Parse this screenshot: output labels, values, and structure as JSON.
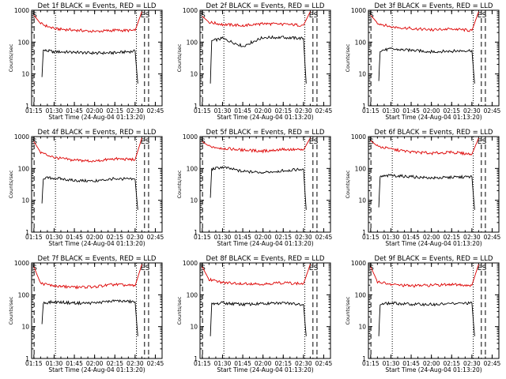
{
  "chart_data": [
    {
      "type": "line",
      "title": "Det 1f BLACK = Events, RED = LLD",
      "xlabel": "Start Time (24-Aug-04 01:13:20)",
      "ylabel": "Counts/sec",
      "xticks": [
        "01:15",
        "01:30",
        "01:45",
        "02:00",
        "02:15",
        "02:30",
        "02:45"
      ],
      "yticks": [
        "1",
        "10",
        "100",
        "1000"
      ],
      "yscale": "log",
      "ylim": [
        1,
        1000
      ],
      "xlim": [
        "01:13:20",
        "02:50"
      ],
      "markers": [
        "S",
        "E",
        "S"
      ],
      "series": [
        {
          "name": "Events",
          "color": "#000000",
          "x": [
            "01:21",
            "01:22",
            "01:30",
            "01:45",
            "02:00",
            "02:15",
            "02:30",
            "02:32"
          ],
          "y": [
            8,
            55,
            50,
            48,
            45,
            46,
            52,
            5
          ]
        },
        {
          "name": "LLD",
          "color": "#dd0000",
          "x": [
            "01:15",
            "01:20",
            "01:30",
            "01:45",
            "02:00",
            "02:15",
            "02:30",
            "02:35"
          ],
          "y": [
            700,
            380,
            260,
            240,
            215,
            235,
            230,
            900
          ]
        }
      ]
    },
    {
      "type": "line",
      "title": "Det 2f BLACK = Events, RED = LLD",
      "xlabel": "Start Time (24-Aug-04 01:13:20)",
      "ylabel": "Counts/sec",
      "xticks": [
        "01:15",
        "01:30",
        "01:45",
        "02:00",
        "02:15",
        "02:30",
        "02:45"
      ],
      "yticks": [
        "1",
        "10",
        "100",
        "1000"
      ],
      "yscale": "log",
      "ylim": [
        1,
        1000
      ],
      "xlim": [
        "01:13:20",
        "02:50"
      ],
      "markers": [
        "S",
        "E",
        "S"
      ],
      "series": [
        {
          "name": "Events",
          "color": "#000000",
          "x": [
            "01:21",
            "01:22",
            "01:30",
            "01:45",
            "02:00",
            "02:15",
            "02:30",
            "02:32"
          ],
          "y": [
            5,
            110,
            130,
            75,
            140,
            140,
            130,
            5
          ]
        },
        {
          "name": "LLD",
          "color": "#dd0000",
          "x": [
            "01:15",
            "01:20",
            "01:30",
            "01:45",
            "02:00",
            "02:15",
            "02:30",
            "02:35"
          ],
          "y": [
            650,
            420,
            360,
            330,
            380,
            360,
            340,
            900
          ]
        }
      ]
    },
    {
      "type": "line",
      "title": "Det 3f BLACK = Events, RED = LLD",
      "xlabel": "Start Time (24-Aug-04 01:13:20)",
      "ylabel": "Counts/sec",
      "xticks": [
        "01:15",
        "01:30",
        "01:45",
        "02:00",
        "02:15",
        "02:30",
        "02:45"
      ],
      "yticks": [
        "1",
        "10",
        "100",
        "1000"
      ],
      "yscale": "log",
      "ylim": [
        1,
        1000
      ],
      "xlim": [
        "01:13:20",
        "02:50"
      ],
      "markers": [
        "S",
        "E",
        "S"
      ],
      "series": [
        {
          "name": "Events",
          "color": "#000000",
          "x": [
            "01:21",
            "01:22",
            "01:30",
            "01:45",
            "02:00",
            "02:15",
            "02:30",
            "02:32"
          ],
          "y": [
            6,
            55,
            60,
            55,
            50,
            52,
            55,
            5
          ]
        },
        {
          "name": "LLD",
          "color": "#dd0000",
          "x": [
            "01:15",
            "01:20",
            "01:30",
            "01:45",
            "02:00",
            "02:15",
            "02:30",
            "02:35"
          ],
          "y": [
            700,
            400,
            300,
            270,
            240,
            260,
            230,
            900
          ]
        }
      ]
    },
    {
      "type": "line",
      "title": "Det 4f BLACK = Events, RED = LLD",
      "xlabel": "Start Time (24-Aug-04 01:13:20)",
      "ylabel": "Counts/sec",
      "xticks": [
        "01:15",
        "01:30",
        "01:45",
        "02:00",
        "02:15",
        "02:30",
        "02:45"
      ],
      "yticks": [
        "1",
        "10",
        "100",
        "1000"
      ],
      "yscale": "log",
      "ylim": [
        1,
        1000
      ],
      "xlim": [
        "01:13:20",
        "02:50"
      ],
      "markers": [
        "S",
        "E",
        "S"
      ],
      "series": [
        {
          "name": "Events",
          "color": "#000000",
          "x": [
            "01:21",
            "01:22",
            "01:30",
            "01:45",
            "02:00",
            "02:15",
            "02:30",
            "02:32"
          ],
          "y": [
            8,
            50,
            50,
            42,
            40,
            48,
            45,
            5
          ]
        },
        {
          "name": "LLD",
          "color": "#dd0000",
          "x": [
            "01:15",
            "01:20",
            "01:30",
            "01:45",
            "02:00",
            "02:15",
            "02:30",
            "02:35"
          ],
          "y": [
            700,
            320,
            220,
            180,
            170,
            200,
            190,
            900
          ]
        }
      ]
    },
    {
      "type": "line",
      "title": "Det 5f BLACK = Events, RED = LLD",
      "xlabel": "Start Time (24-Aug-04 01:13:20)",
      "ylabel": "Counts/sec",
      "xticks": [
        "01:15",
        "01:30",
        "01:45",
        "02:00",
        "02:15",
        "02:30",
        "02:45"
      ],
      "yticks": [
        "1",
        "10",
        "100",
        "1000"
      ],
      "yscale": "log",
      "ylim": [
        1,
        1000
      ],
      "xlim": [
        "01:13:20",
        "02:50"
      ],
      "markers": [
        "S",
        "E",
        "S"
      ],
      "series": [
        {
          "name": "Events",
          "color": "#000000",
          "x": [
            "01:21",
            "01:22",
            "01:30",
            "01:45",
            "02:00",
            "02:15",
            "02:30",
            "02:32"
          ],
          "y": [
            12,
            95,
            110,
            80,
            75,
            85,
            95,
            5
          ]
        },
        {
          "name": "LLD",
          "color": "#dd0000",
          "x": [
            "01:15",
            "01:20",
            "01:30",
            "01:45",
            "02:00",
            "02:15",
            "02:30",
            "02:35"
          ],
          "y": [
            700,
            500,
            430,
            380,
            350,
            400,
            380,
            900
          ]
        }
      ]
    },
    {
      "type": "line",
      "title": "Det 6f BLACK = Events, RED = LLD",
      "xlabel": "Start Time (24-Aug-04 01:13:20)",
      "ylabel": "Counts/sec",
      "xticks": [
        "01:15",
        "01:30",
        "01:45",
        "02:00",
        "02:15",
        "02:30",
        "02:45"
      ],
      "yticks": [
        "1",
        "10",
        "100",
        "1000"
      ],
      "yscale": "log",
      "ylim": [
        1,
        1000
      ],
      "xlim": [
        "01:13:20",
        "02:50"
      ],
      "markers": [
        "S",
        "E",
        "S"
      ],
      "series": [
        {
          "name": "Events",
          "color": "#000000",
          "x": [
            "01:21",
            "01:22",
            "01:30",
            "01:45",
            "02:00",
            "02:15",
            "02:30",
            "02:32"
          ],
          "y": [
            6,
            55,
            60,
            55,
            50,
            52,
            55,
            5
          ]
        },
        {
          "name": "LLD",
          "color": "#dd0000",
          "x": [
            "01:15",
            "01:20",
            "01:30",
            "01:45",
            "02:00",
            "02:15",
            "02:30",
            "02:35"
          ],
          "y": [
            750,
            500,
            400,
            330,
            300,
            320,
            280,
            900
          ]
        }
      ]
    },
    {
      "type": "line",
      "title": "Det 7f BLACK = Events, RED = LLD",
      "xlabel": "Start Time (24-Aug-04 01:13:20)",
      "ylabel": "Counts/sec",
      "xticks": [
        "01:15",
        "01:30",
        "01:45",
        "02:00",
        "02:15",
        "02:30",
        "02:45"
      ],
      "yticks": [
        "1",
        "10",
        "100",
        "1000"
      ],
      "yscale": "log",
      "ylim": [
        1,
        1000
      ],
      "xlim": [
        "01:13:20",
        "02:50"
      ],
      "markers": [
        "S",
        "E",
        "S"
      ],
      "series": [
        {
          "name": "Events",
          "color": "#000000",
          "x": [
            "01:21",
            "01:22",
            "01:30",
            "01:45",
            "02:00",
            "02:15",
            "02:30",
            "02:32"
          ],
          "y": [
            12,
            55,
            60,
            55,
            55,
            65,
            60,
            5
          ]
        },
        {
          "name": "LLD",
          "color": "#dd0000",
          "x": [
            "01:15",
            "01:20",
            "01:30",
            "01:45",
            "02:00",
            "02:15",
            "02:30",
            "02:35"
          ],
          "y": [
            750,
            230,
            190,
            170,
            180,
            210,
            190,
            900
          ]
        }
      ]
    },
    {
      "type": "line",
      "title": "Det 8f BLACK = Events, RED = LLD",
      "xlabel": "Start Time (24-Aug-04 01:13:20)",
      "ylabel": "Counts/sec",
      "xticks": [
        "01:15",
        "01:30",
        "01:45",
        "02:00",
        "02:15",
        "02:30",
        "02:45"
      ],
      "yticks": [
        "1",
        "10",
        "100",
        "1000"
      ],
      "yscale": "log",
      "ylim": [
        1,
        1000
      ],
      "xlim": [
        "01:13:20",
        "02:50"
      ],
      "markers": [
        "S",
        "E",
        "S"
      ],
      "series": [
        {
          "name": "Events",
          "color": "#000000",
          "x": [
            "01:21",
            "01:22",
            "01:30",
            "01:45",
            "02:00",
            "02:15",
            "02:30",
            "02:32"
          ],
          "y": [
            5,
            50,
            55,
            50,
            52,
            55,
            50,
            5
          ]
        },
        {
          "name": "LLD",
          "color": "#dd0000",
          "x": [
            "01:15",
            "01:20",
            "01:30",
            "01:45",
            "02:00",
            "02:15",
            "02:30",
            "02:35"
          ],
          "y": [
            750,
            300,
            240,
            230,
            220,
            240,
            220,
            900
          ]
        }
      ]
    },
    {
      "type": "line",
      "title": "Det 9f BLACK = Events, RED = LLD",
      "xlabel": "Start Time (24-Aug-04 01:13:20)",
      "ylabel": "Counts/sec",
      "xticks": [
        "01:15",
        "01:30",
        "01:45",
        "02:00",
        "02:15",
        "02:30",
        "02:45"
      ],
      "yticks": [
        "1",
        "10",
        "100",
        "1000"
      ],
      "yscale": "log",
      "ylim": [
        1,
        1000
      ],
      "xlim": [
        "01:13:20",
        "02:50"
      ],
      "markers": [
        "S",
        "E",
        "S"
      ],
      "series": [
        {
          "name": "Events",
          "color": "#000000",
          "x": [
            "01:21",
            "01:22",
            "01:30",
            "01:45",
            "02:00",
            "02:15",
            "02:30",
            "02:32"
          ],
          "y": [
            5,
            50,
            55,
            50,
            50,
            52,
            55,
            5
          ]
        },
        {
          "name": "LLD",
          "color": "#dd0000",
          "x": [
            "01:15",
            "01:20",
            "01:30",
            "01:45",
            "02:00",
            "02:15",
            "02:30",
            "02:35"
          ],
          "y": [
            750,
            260,
            210,
            190,
            200,
            210,
            200,
            900
          ]
        }
      ]
    }
  ]
}
